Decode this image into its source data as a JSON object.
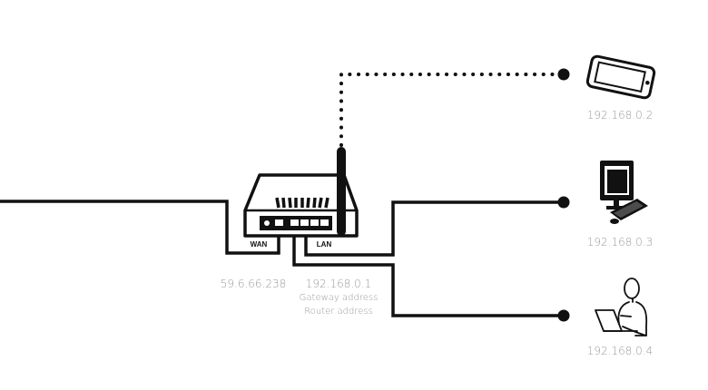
{
  "colors": {
    "line": "#111111",
    "label": "#9a9a9a",
    "background": "#ffffff"
  },
  "router": {
    "wan_port_label": "WAN",
    "lan_port_label": "LAN",
    "wan_ip": "59.6.66.238",
    "lan_ip": "192.168.0.1",
    "lan_notes": [
      "Gateway address",
      "Router address"
    ]
  },
  "devices": [
    {
      "type": "smartphone-icon",
      "connection": "wireless",
      "ip": "192.168.0.2"
    },
    {
      "type": "desktop-computer-icon",
      "connection": "wired",
      "ip": "192.168.0.3"
    },
    {
      "type": "person-with-laptop-icon",
      "connection": "wired",
      "ip": "192.168.0.4"
    }
  ]
}
